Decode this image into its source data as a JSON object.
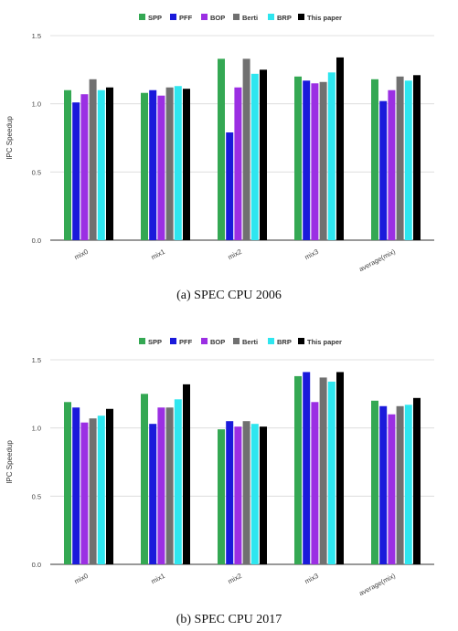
{
  "chart_data": [
    {
      "type": "bar",
      "caption": "(a) SPEC CPU 2006",
      "categories": [
        "mix0",
        "mix1",
        "mix2",
        "mix3",
        "average(mix)"
      ],
      "ylabel": "IPC Speedup",
      "ylim": [
        0,
        1.5
      ],
      "yticks": [
        "0.0",
        "0.5",
        "1.0",
        "1.5"
      ],
      "grid": true,
      "legend_position": "top-center",
      "series": [
        {
          "name": "SPP",
          "color": "#34a853",
          "values": [
            1.1,
            1.08,
            1.33,
            1.2,
            1.18
          ]
        },
        {
          "name": "PFF",
          "color": "#1a1adb",
          "values": [
            1.01,
            1.1,
            0.79,
            1.17,
            1.02
          ]
        },
        {
          "name": "BOP",
          "color": "#9b2fe3",
          "values": [
            1.07,
            1.06,
            1.12,
            1.15,
            1.1
          ]
        },
        {
          "name": "Berti",
          "color": "#707070",
          "values": [
            1.18,
            1.12,
            1.33,
            1.16,
            1.2
          ]
        },
        {
          "name": "BRP",
          "color": "#2ee6ef",
          "values": [
            1.1,
            1.13,
            1.22,
            1.23,
            1.17
          ]
        },
        {
          "name": "This paper",
          "color": "#000000",
          "values": [
            1.12,
            1.11,
            1.25,
            1.34,
            1.21
          ]
        }
      ]
    },
    {
      "type": "bar",
      "caption": "(b) SPEC CPU 2017",
      "categories": [
        "mix0",
        "mix1",
        "mix2",
        "mix3",
        "average(mix)"
      ],
      "ylabel": "IPC Speedup",
      "ylim": [
        0,
        1.5
      ],
      "yticks": [
        "0.0",
        "0.5",
        "1.0",
        "1.5"
      ],
      "grid": true,
      "legend_position": "top-center",
      "series": [
        {
          "name": "SPP",
          "color": "#34a853",
          "values": [
            1.19,
            1.25,
            0.99,
            1.38,
            1.2
          ]
        },
        {
          "name": "PFF",
          "color": "#1a1adb",
          "values": [
            1.15,
            1.03,
            1.05,
            1.41,
            1.16
          ]
        },
        {
          "name": "BOP",
          "color": "#9b2fe3",
          "values": [
            1.04,
            1.15,
            1.01,
            1.19,
            1.1
          ]
        },
        {
          "name": "Berti",
          "color": "#707070",
          "values": [
            1.07,
            1.15,
            1.05,
            1.37,
            1.16
          ]
        },
        {
          "name": "BRP",
          "color": "#2ee6ef",
          "values": [
            1.09,
            1.21,
            1.03,
            1.34,
            1.17
          ]
        },
        {
          "name": "This paper",
          "color": "#000000",
          "values": [
            1.14,
            1.32,
            1.01,
            1.41,
            1.22
          ]
        }
      ]
    }
  ]
}
